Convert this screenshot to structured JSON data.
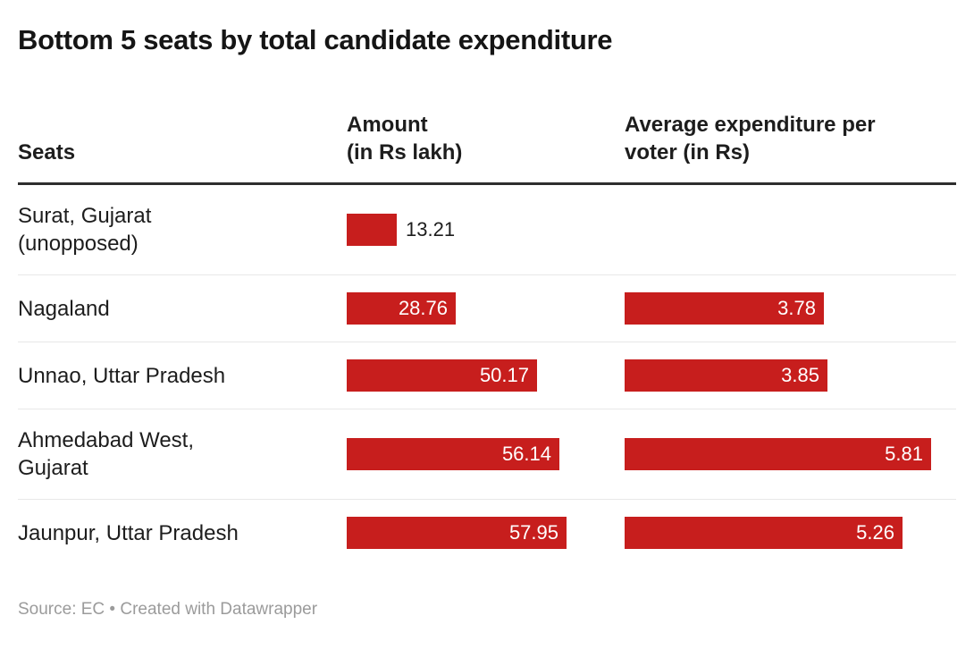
{
  "title": "Bottom 5 seats by total candidate expenditure",
  "header": {
    "seats": "Seats",
    "amount": "Amount\n(in Rs lakh)",
    "avg": "Average expenditure per\nvoter (in Rs)"
  },
  "chart_data": {
    "type": "bar",
    "title": "Bottom 5 seats by total candidate expenditure",
    "columns": [
      "Seats",
      "Amount (in Rs lakh)",
      "Average expenditure per voter (in Rs)"
    ],
    "bar_color": "#c71e1d",
    "amount_axis_max": 57.95,
    "avg_axis_max": 5.81,
    "rows": [
      {
        "seat": "Surat, Gujarat\n(unopposed)",
        "amount": 13.21,
        "avg": null
      },
      {
        "seat": "Nagaland",
        "amount": 28.76,
        "avg": 3.78
      },
      {
        "seat": "Unnao, Uttar Pradesh",
        "amount": 50.17,
        "avg": 3.85
      },
      {
        "seat": "Ahmedabad West,\nGujarat",
        "amount": 56.14,
        "avg": 5.81
      },
      {
        "seat": "Jaunpur, Uttar Pradesh",
        "amount": 57.95,
        "avg": 5.26
      }
    ]
  },
  "footer": {
    "source_note": "Source: EC • Created with Datawrapper"
  }
}
